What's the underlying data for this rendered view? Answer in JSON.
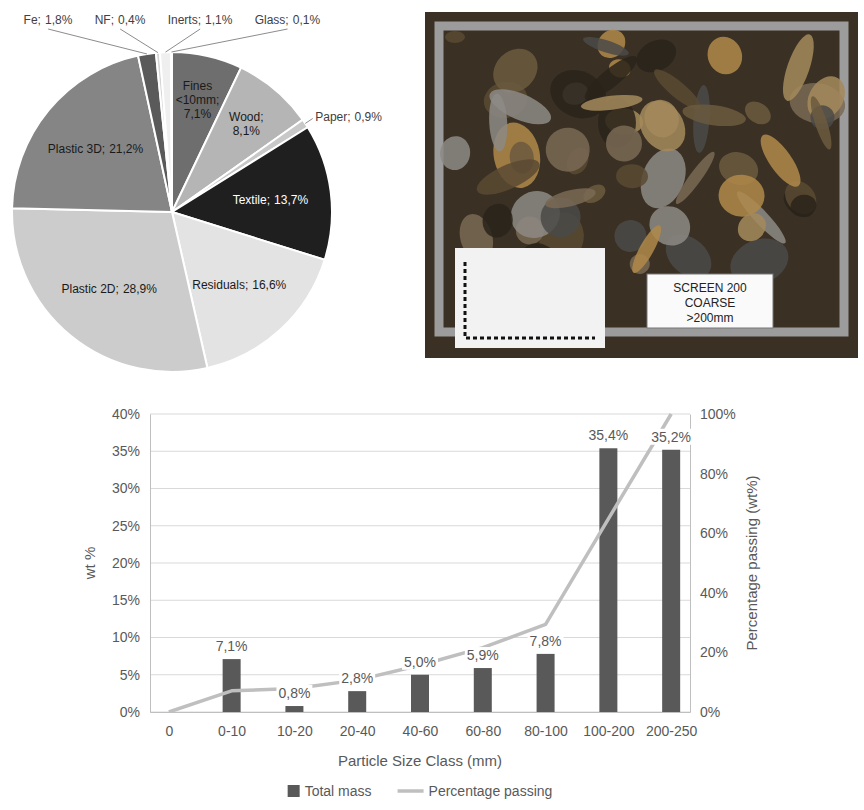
{
  "chart_data": [
    {
      "type": "pie",
      "categories": [
        "Fines <10mm;",
        "Wood;",
        "Paper;",
        "Textile;",
        "Residuals;",
        "Plastic 2D;",
        "Plastic 3D;",
        "Fe;",
        "NF;",
        "Inerts;",
        "Glass;"
      ],
      "values": [
        7.1,
        8.1,
        0.9,
        13.7,
        16.6,
        28.9,
        21.2,
        1.8,
        0.4,
        1.1,
        0.1
      ],
      "value_labels": [
        "7,1%",
        "8,1%",
        "0,9%",
        "13,7%",
        "16,6%",
        "28,9%",
        "21,2%",
        "1,8%",
        "0,4%",
        "1,1%",
        "0,1%"
      ],
      "colors": [
        "#6e6e6e",
        "#b5b5b5",
        "#c8c8c8",
        "#1f1f1f",
        "#e3e3e3",
        "#cccccc",
        "#858585",
        "#5a5a5a",
        "#d4d4d4",
        "#efefef",
        "#a6a6a6"
      ]
    },
    {
      "type": "bar",
      "categories": [
        "0",
        "0-10",
        "10-20",
        "20-40",
        "40-60",
        "60-80",
        "80-100",
        "100-200",
        "200-250"
      ],
      "series": [
        {
          "name": "Total mass",
          "type": "bar",
          "color": "#595959",
          "values": [
            null,
            7.1,
            0.8,
            2.8,
            5.0,
            5.9,
            7.8,
            35.4,
            35.2
          ],
          "value_labels": [
            null,
            "7,1%",
            "0,8%",
            "2,8%",
            "5,0%",
            "5,9%",
            "7,8%",
            "35,4%",
            "35,2%"
          ]
        },
        {
          "name": "Percentage passing",
          "type": "line",
          "axis": "y2",
          "color": "#bfbfbf",
          "values": [
            0,
            7.1,
            7.9,
            10.7,
            15.7,
            21.6,
            29.4,
            64.8,
            100
          ]
        }
      ],
      "xlabel": "Particle Size Class (mm)",
      "ylabel": "wt %",
      "y2label": "Percentage passing (wt%)",
      "ylim": [
        0,
        40
      ],
      "yticks": [
        {
          "value": 0,
          "label": "0%"
        },
        {
          "value": 5,
          "label": "5%"
        },
        {
          "value": 10,
          "label": "10%"
        },
        {
          "value": 15,
          "label": "15%"
        },
        {
          "value": 20,
          "label": "20%"
        },
        {
          "value": 25,
          "label": "25%"
        },
        {
          "value": 30,
          "label": "30%"
        },
        {
          "value": 35,
          "label": "35%"
        },
        {
          "value": 40,
          "label": "40%"
        }
      ],
      "y2lim": [
        0,
        100
      ],
      "y2ticks": [
        {
          "value": 0,
          "label": "0%"
        },
        {
          "value": 20,
          "label": "20%"
        },
        {
          "value": 40,
          "label": "40%"
        },
        {
          "value": 60,
          "label": "60%"
        },
        {
          "value": 80,
          "label": "80%"
        },
        {
          "value": 100,
          "label": "100%"
        }
      ],
      "grid": true,
      "legend": "bottom",
      "data_labels": true
    }
  ],
  "photo": {
    "sign": [
      "SCREEN 200",
      "COARSE",
      ">200mm"
    ]
  }
}
